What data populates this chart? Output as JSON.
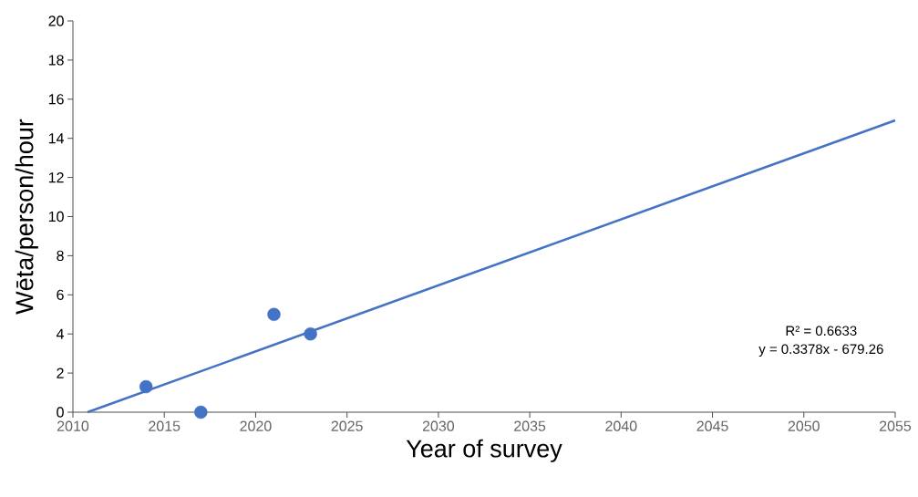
{
  "chart_data": {
    "type": "scatter",
    "xlabel": "Year of survey",
    "ylabel": "Wēta/person/hour",
    "xlim": [
      2010,
      2055
    ],
    "ylim": [
      0,
      20
    ],
    "xticks": [
      2010,
      2015,
      2020,
      2025,
      2030,
      2035,
      2040,
      2045,
      2050,
      2055
    ],
    "yticks": [
      0,
      2,
      4,
      6,
      8,
      10,
      12,
      14,
      16,
      18,
      20
    ],
    "series": [
      {
        "marker": "circle",
        "color": "#4472c4",
        "x": [
          2014,
          2017,
          2021,
          2023
        ],
        "values": [
          1.3,
          0,
          5,
          4
        ]
      },
      {
        "type": "line",
        "marker": "none",
        "color": "#4472c4",
        "x": [
          2010.8,
          2055
        ],
        "values": [
          0,
          14.92
        ]
      }
    ],
    "annotations": [
      "R² = 0.6633",
      "y = 0.3378x - 679.26"
    ]
  }
}
